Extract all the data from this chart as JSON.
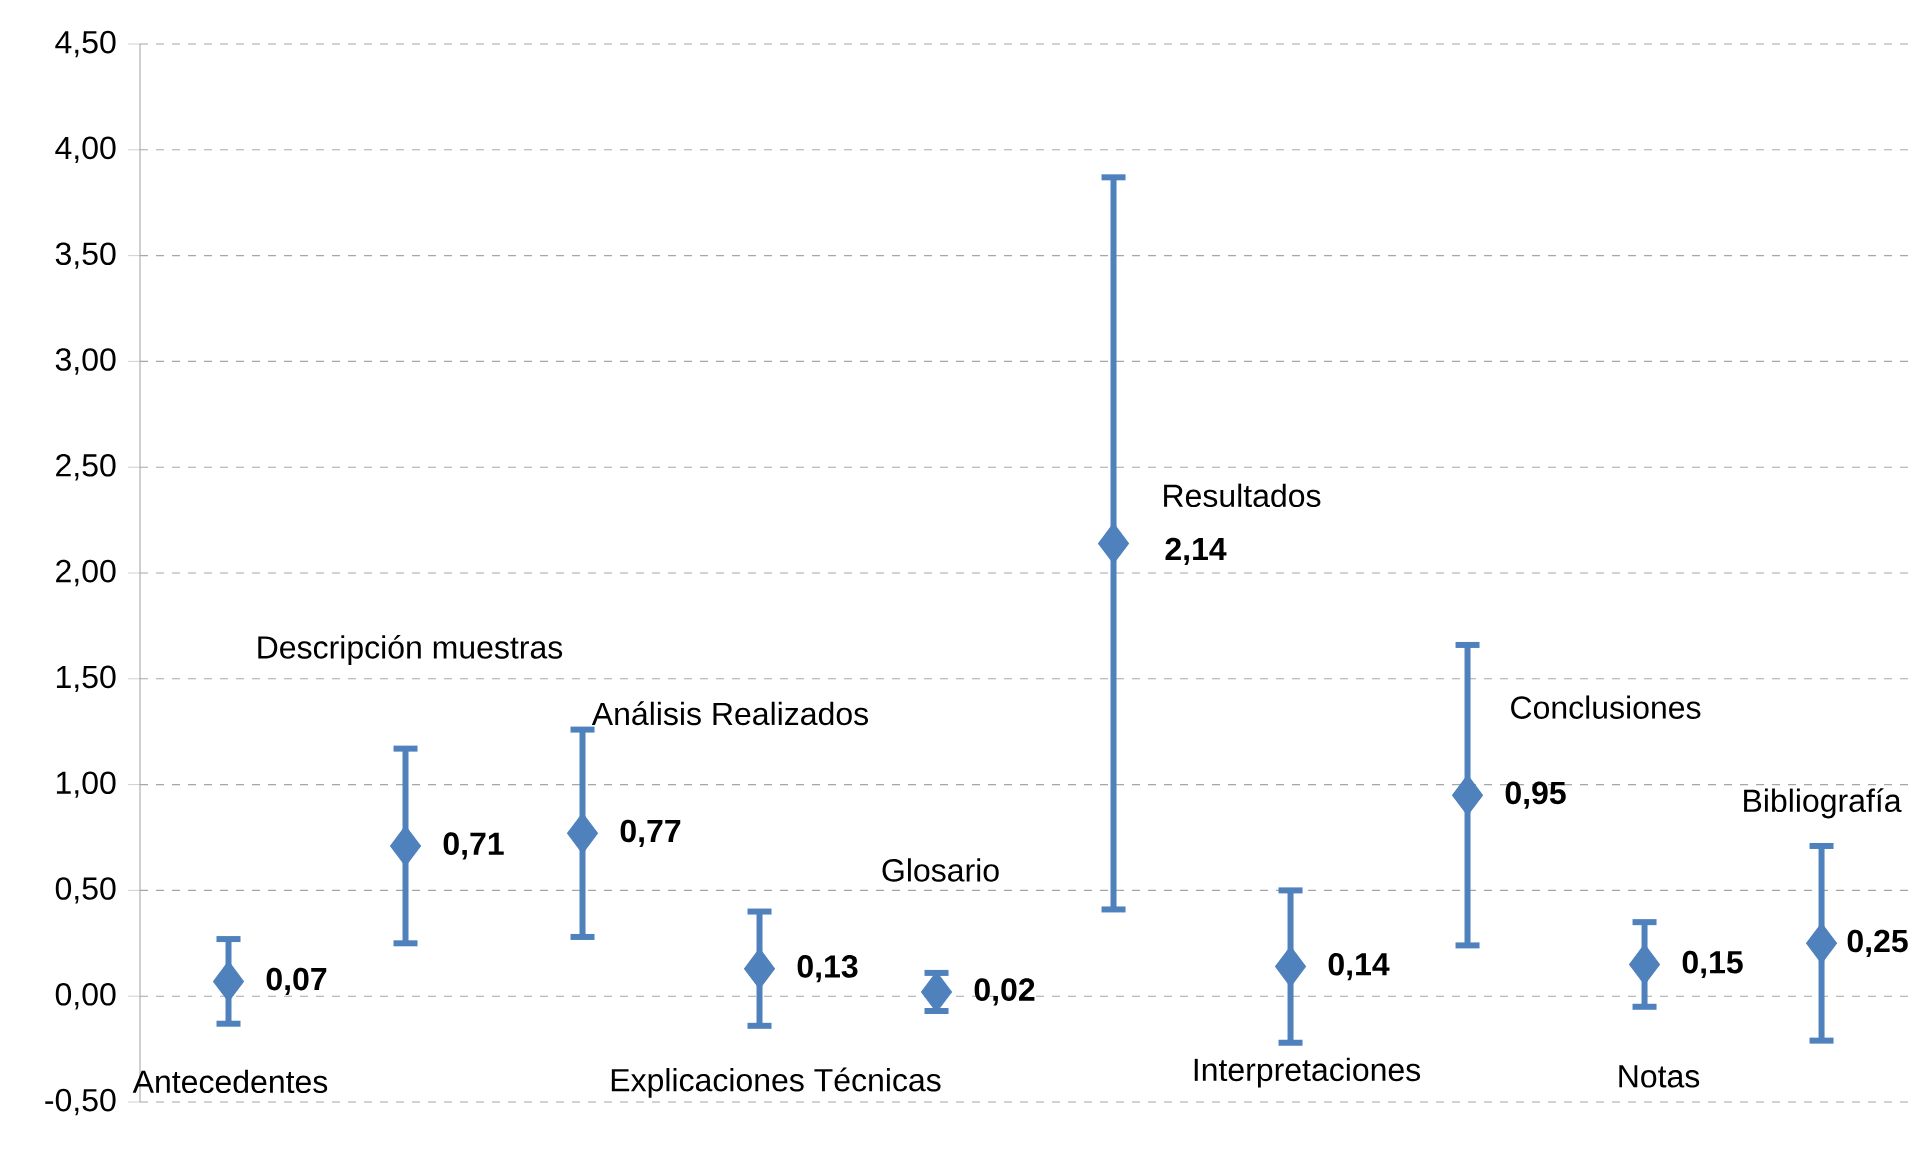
{
  "chart_data": {
    "type": "scatter",
    "categories": [
      null,
      null,
      null,
      null,
      null,
      null,
      null,
      null,
      null,
      null
    ],
    "annotations": [
      "Antecedentes",
      "Descripción muestras",
      "Análisis Realizados",
      "Explicaciones Técnicas",
      "Glosario",
      "Resultados",
      "Interpretaciones",
      "Conclusiones",
      "Notas",
      "Bibliografía"
    ],
    "values": [
      0.07,
      0.71,
      0.77,
      0.13,
      0.02,
      2.14,
      0.14,
      0.95,
      0.15,
      0.25
    ],
    "value_labels": [
      "0,07",
      "0,71",
      "0,77",
      "0,13",
      "0,02",
      "2,14",
      "0,14",
      "0,95",
      "0,15",
      "0,25"
    ],
    "errors": [
      0.2,
      0.46,
      0.49,
      0.27,
      0.09,
      1.73,
      0.36,
      0.71,
      0.2,
      0.46
    ],
    "color": "#4f81bd",
    "marker": "diamond",
    "ylim": [
      -0.5,
      4.5
    ],
    "yticks": [
      {
        "value": -0.5,
        "label": "-0,50"
      },
      {
        "value": 0,
        "label": "0,00"
      },
      {
        "value": 0.5,
        "label": "0,50"
      },
      {
        "value": 1,
        "label": "1,00"
      },
      {
        "value": 1.5,
        "label": "1,50"
      },
      {
        "value": 2,
        "label": "2,00"
      },
      {
        "value": 2.5,
        "label": "2,50"
      },
      {
        "value": 3,
        "label": "3,00"
      },
      {
        "value": 3.5,
        "label": "3,50"
      },
      {
        "value": 4,
        "label": "4,00"
      },
      {
        "value": 4.5,
        "label": "4,50"
      }
    ],
    "grid": "y",
    "tick_labels": "y"
  }
}
